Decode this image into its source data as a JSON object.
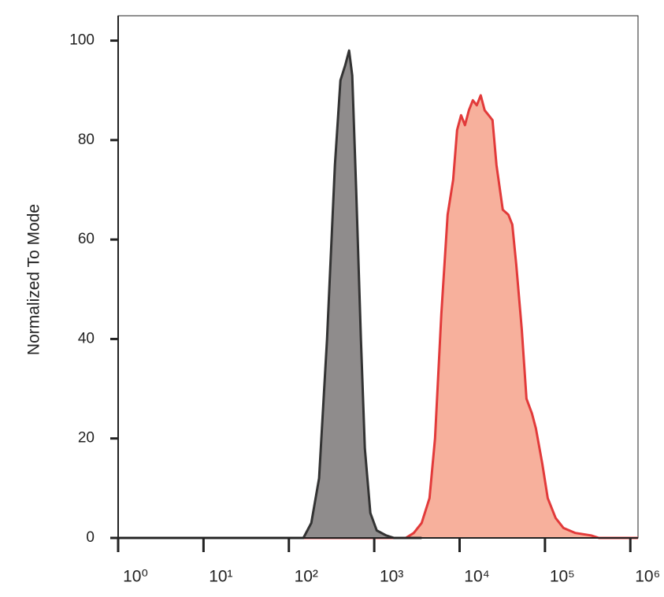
{
  "chart_data": {
    "type": "histogram-overlay",
    "y_label": "Normalized To Mode",
    "xscale": "log",
    "xlim": [
      1,
      1230000
    ],
    "ylim": [
      0,
      105
    ],
    "xticks": [
      {
        "value": 1,
        "label": "10⁰"
      },
      {
        "value": 10,
        "label": "10¹"
      },
      {
        "value": 100,
        "label": "10²"
      },
      {
        "value": 1000,
        "label": "10³"
      },
      {
        "value": 10000,
        "label": "10⁴"
      },
      {
        "value": 100000,
        "label": "10⁵"
      },
      {
        "value": 1000000,
        "label": "10⁶"
      }
    ],
    "yticks": [
      0,
      20,
      40,
      60,
      80,
      100
    ],
    "series": [
      {
        "color": "#e23a3a",
        "fill": "#f7b09c",
        "x": [
          1,
          2344,
          2904,
          3589,
          4440,
          5150,
          6110,
          7240,
          8400,
          9350,
          10400,
          11560,
          12850,
          14290,
          15880,
          17660,
          19660,
          21880,
          24320,
          27040,
          32060,
          37240,
          41400,
          46030,
          53460,
          60690,
          70470,
          78340,
          92900,
          107800,
          133300,
          164900,
          227000,
          346700,
          428600,
          1230000
        ],
        "values": [
          0,
          0,
          1,
          3,
          8,
          20,
          45,
          65,
          72,
          82,
          85,
          83,
          86,
          88,
          87,
          89,
          86,
          85,
          84,
          75,
          66,
          65,
          63,
          55,
          42,
          28,
          25,
          22,
          15,
          8,
          4,
          2,
          1,
          0.5,
          0,
          0
        ]
      },
      {
        "color": "#333333",
        "fill": "#8f8c8c",
        "x": [
          1,
          148,
          183,
          226,
          280,
          346,
          402,
          456,
          507,
          552,
          615,
          698,
          776,
          901,
          1069,
          1378,
          1705,
          3589
        ],
        "values": [
          0,
          0,
          3,
          12,
          40,
          75,
          92,
          95,
          98,
          93,
          70,
          40,
          18,
          5,
          1.5,
          0.5,
          0,
          0
        ]
      }
    ]
  }
}
